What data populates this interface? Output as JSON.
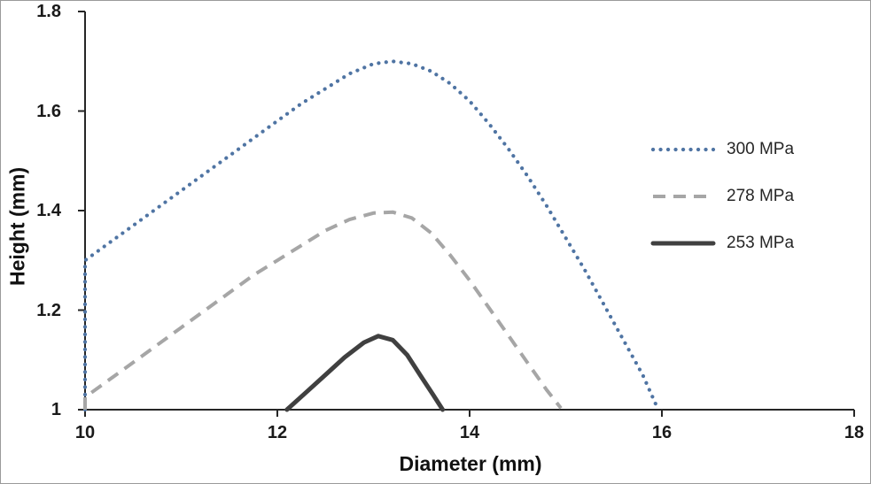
{
  "chart_data": {
    "type": "line",
    "title": "",
    "xlabel": "Diameter (mm)",
    "ylabel": "Height (mm)",
    "xlim": [
      10,
      18
    ],
    "ylim": [
      1,
      1.8
    ],
    "xticks": [
      "10",
      "12",
      "14",
      "16",
      "18"
    ],
    "yticks": [
      "1",
      "1.2",
      "1.4",
      "1.6",
      "1.8"
    ],
    "grid": false,
    "legend_position": "right",
    "axis_color": "#262626",
    "series": [
      {
        "name": "300 MPa",
        "style": "dotted",
        "color": "#4f74a3",
        "points": [
          [
            10,
            1.0
          ],
          [
            10,
            1.3
          ],
          [
            10.25,
            1.335
          ],
          [
            10.5,
            1.37
          ],
          [
            10.75,
            1.405
          ],
          [
            11,
            1.44
          ],
          [
            11.25,
            1.475
          ],
          [
            11.5,
            1.51
          ],
          [
            11.75,
            1.545
          ],
          [
            12,
            1.58
          ],
          [
            12.25,
            1.615
          ],
          [
            12.5,
            1.645
          ],
          [
            12.75,
            1.675
          ],
          [
            13,
            1.695
          ],
          [
            13.2,
            1.7
          ],
          [
            13.4,
            1.695
          ],
          [
            13.6,
            1.68
          ],
          [
            13.8,
            1.655
          ],
          [
            14,
            1.62
          ],
          [
            14.2,
            1.575
          ],
          [
            14.4,
            1.525
          ],
          [
            14.6,
            1.47
          ],
          [
            14.8,
            1.41
          ],
          [
            15,
            1.345
          ],
          [
            15.2,
            1.28
          ],
          [
            15.4,
            1.21
          ],
          [
            15.6,
            1.14
          ],
          [
            15.8,
            1.07
          ],
          [
            15.95,
            1.005
          ]
        ]
      },
      {
        "name": "278 MPa",
        "style": "dashed",
        "color": "#a6a6a6",
        "points": [
          [
            10,
            1.0
          ],
          [
            10,
            1.025
          ],
          [
            10.25,
            1.06
          ],
          [
            10.5,
            1.095
          ],
          [
            10.75,
            1.13
          ],
          [
            11,
            1.165
          ],
          [
            11.25,
            1.2
          ],
          [
            11.5,
            1.235
          ],
          [
            11.75,
            1.27
          ],
          [
            12,
            1.3
          ],
          [
            12.25,
            1.33
          ],
          [
            12.5,
            1.36
          ],
          [
            12.75,
            1.382
          ],
          [
            13,
            1.395
          ],
          [
            13.2,
            1.397
          ],
          [
            13.4,
            1.385
          ],
          [
            13.6,
            1.355
          ],
          [
            13.8,
            1.31
          ],
          [
            14,
            1.26
          ],
          [
            14.2,
            1.205
          ],
          [
            14.4,
            1.15
          ],
          [
            14.6,
            1.095
          ],
          [
            14.8,
            1.04
          ],
          [
            14.95,
            1.003
          ]
        ]
      },
      {
        "name": "253 MPa",
        "style": "solid",
        "color": "#404040",
        "points": [
          [
            12.1,
            1.0
          ],
          [
            12.3,
            1.035
          ],
          [
            12.5,
            1.07
          ],
          [
            12.7,
            1.105
          ],
          [
            12.9,
            1.135
          ],
          [
            13.05,
            1.148
          ],
          [
            13.2,
            1.14
          ],
          [
            13.35,
            1.11
          ],
          [
            13.5,
            1.065
          ],
          [
            13.62,
            1.03
          ],
          [
            13.72,
            1.0
          ]
        ]
      }
    ]
  }
}
